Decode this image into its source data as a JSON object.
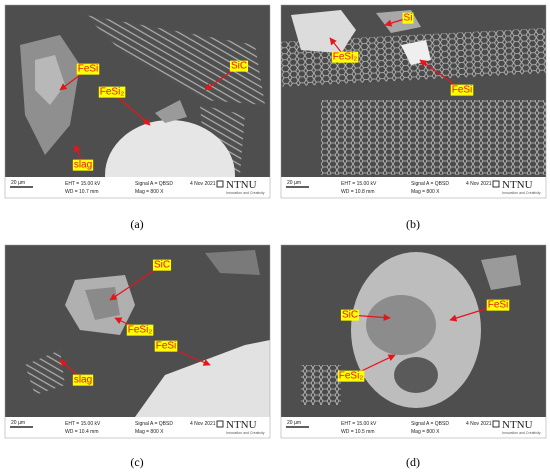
{
  "panels": [
    {
      "caption": "(a)",
      "scale": "20 µm",
      "eht": "EHT = 15.00 kV",
      "wd": "WD = 10.7 mm",
      "signal": "Signal A = QBSD",
      "mag": "Mag =  800 X",
      "date": "4 Nov 2021",
      "logo": "NTNU",
      "tagline": "Innovation and Creativity",
      "labels": [
        "FeSi",
        "FeSi₂",
        "SiC",
        "slag"
      ]
    },
    {
      "caption": "(b)",
      "scale": "20 µm",
      "eht": "EHT = 15.00 kV",
      "wd": "WD = 10.8 mm",
      "signal": "Signal A = QBSD",
      "mag": "Mag =  800 X",
      "date": "4 Nov 2021",
      "logo": "NTNU",
      "tagline": "Innovation and Creativity",
      "labels": [
        "Si",
        "FeSi₂",
        "FeSi"
      ]
    },
    {
      "caption": "(c)",
      "scale": "20 µm",
      "eht": "EHT = 15.00 kV",
      "wd": "WD = 10.4 mm",
      "signal": "Signal A = QBSD",
      "mag": "Mag =  800 X",
      "date": "4 Nov 2021",
      "logo": "NTNU",
      "tagline": "Innovation and Creativity",
      "labels": [
        "SiC",
        "FeSi₂",
        "FeSi",
        "slag"
      ]
    },
    {
      "caption": "(d)",
      "scale": "20 µm",
      "eht": "EHT = 15.00 kV",
      "wd": "WD = 10.5 mm",
      "signal": "Signal A = QBSD",
      "mag": "Mag =  800 X",
      "date": "4 Nov 2021",
      "logo": "NTNU",
      "tagline": "Innovation and Creativity",
      "labels": [
        "SiC",
        "FeSi",
        "FeSi₂"
      ]
    }
  ]
}
